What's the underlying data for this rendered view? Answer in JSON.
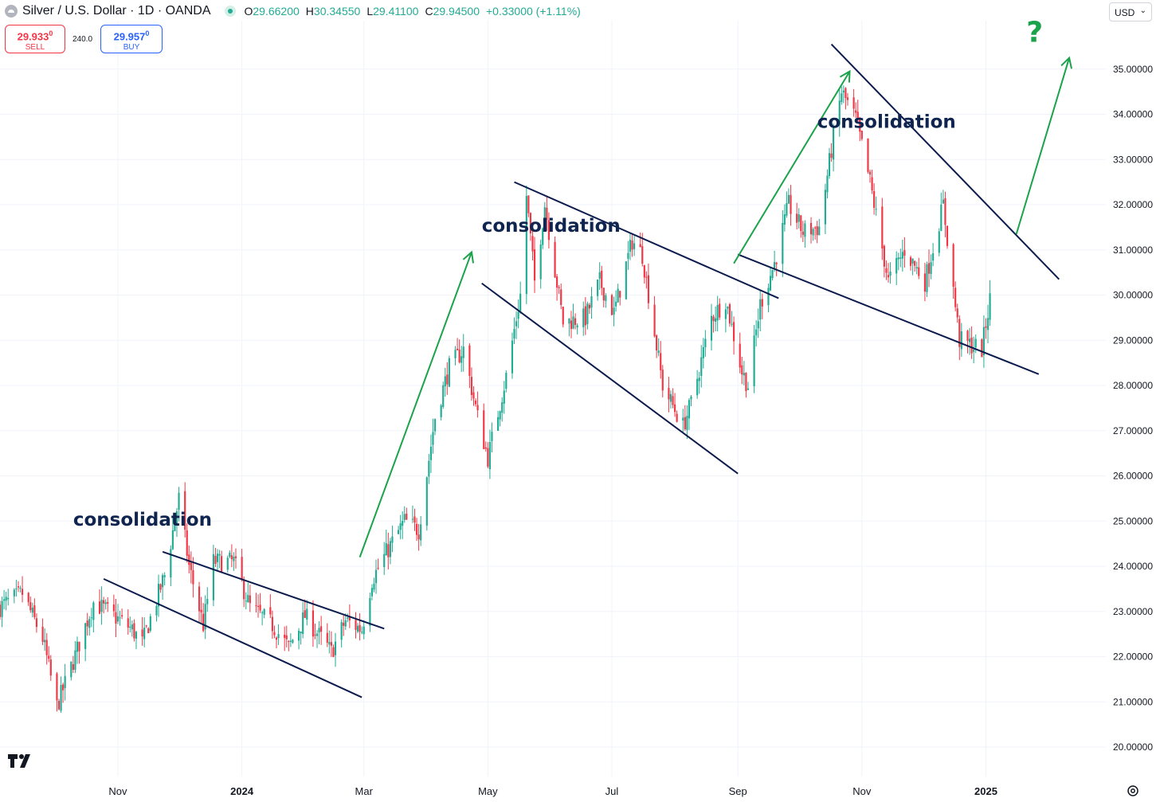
{
  "header": {
    "title": "Silver / U.S. Dollar · 1D · OANDA",
    "ohlc": [
      {
        "k": "O",
        "v": "29.66200"
      },
      {
        "k": "H",
        "v": "30.34550"
      },
      {
        "k": "L",
        "v": "29.41100"
      },
      {
        "k": "C",
        "v": "29.94500"
      },
      {
        "k": "",
        "v": "+0.33000 (+1.11%)"
      }
    ]
  },
  "trade": {
    "sell_price": "29.933",
    "sell_price_small": "0",
    "sell_label": "SELL",
    "spread": "240.0",
    "buy_price": "29.957",
    "buy_price_small": "0",
    "buy_label": "BUY"
  },
  "currency": "USD",
  "colors": {
    "up": "#22ab94",
    "down": "#f23645",
    "trendline": "#0c1b4d",
    "arrow": "#1aa34a",
    "annotation": "#0f2550",
    "grid": "#f0f3fa",
    "axis_text": "#131722"
  },
  "chart_data": {
    "type": "candlestick",
    "symbol": "XAGUSD",
    "interval": "1D",
    "ylim": [
      20.0,
      35.9
    ],
    "y_ticks": [
      "20.00000",
      "21.00000",
      "22.00000",
      "23.00000",
      "24.00000",
      "25.00000",
      "26.00000",
      "27.00000",
      "28.00000",
      "29.00000",
      "30.00000",
      "31.00000",
      "32.00000",
      "33.00000",
      "34.00000",
      "35.00000"
    ],
    "x_ticks": [
      {
        "label": "Nov",
        "date": "2023-11-01"
      },
      {
        "label": "2024",
        "date": "2024-01-01"
      },
      {
        "label": "Mar",
        "date": "2024-03-01"
      },
      {
        "label": "May",
        "date": "2024-05-01"
      },
      {
        "label": "Jul",
        "date": "2024-07-01"
      },
      {
        "label": "Sep",
        "date": "2024-09-01"
      },
      {
        "label": "Nov",
        "date": "2024-11-01"
      },
      {
        "label": "2025",
        "date": "2025-01-01"
      }
    ],
    "xlim": [
      "2023-09-04",
      "2025-03-01"
    ],
    "price_path": [
      [
        "2023-09-04",
        23.1
      ],
      [
        "2023-09-15",
        23.4
      ],
      [
        "2023-09-25",
        22.4
      ],
      [
        "2023-10-02",
        20.9
      ],
      [
        "2023-10-10",
        21.9
      ],
      [
        "2023-10-20",
        23.2
      ],
      [
        "2023-10-27",
        23.0
      ],
      [
        "2023-11-08",
        22.6
      ],
      [
        "2023-11-13",
        22.3
      ],
      [
        "2023-11-24",
        23.8
      ],
      [
        "2023-12-01",
        25.5
      ],
      [
        "2023-12-06",
        24.0
      ],
      [
        "2023-12-13",
        22.7
      ],
      [
        "2023-12-18",
        24.1
      ],
      [
        "2023-12-28",
        24.1
      ],
      [
        "2024-01-05",
        23.1
      ],
      [
        "2024-01-16",
        22.7
      ],
      [
        "2024-01-24",
        22.2
      ],
      [
        "2024-02-01",
        22.9
      ],
      [
        "2024-02-14",
        22.1
      ],
      [
        "2024-02-21",
        22.8
      ],
      [
        "2024-02-29",
        22.6
      ],
      [
        "2024-03-05",
        23.7
      ],
      [
        "2024-03-12",
        24.3
      ],
      [
        "2024-03-21",
        25.0
      ],
      [
        "2024-03-28",
        24.8
      ],
      [
        "2024-04-05",
        27.3
      ],
      [
        "2024-04-12",
        28.4
      ],
      [
        "2024-04-19",
        28.8
      ],
      [
        "2024-04-26",
        27.3
      ],
      [
        "2024-05-01",
        26.4
      ],
      [
        "2024-05-10",
        28.2
      ],
      [
        "2024-05-17",
        30.0
      ],
      [
        "2024-05-20",
        32.2
      ],
      [
        "2024-05-24",
        30.3
      ],
      [
        "2024-05-29",
        32.0
      ],
      [
        "2024-06-07",
        29.4
      ],
      [
        "2024-06-18",
        29.5
      ],
      [
        "2024-06-25",
        30.3
      ],
      [
        "2024-07-02",
        29.6
      ],
      [
        "2024-07-11",
        31.2
      ],
      [
        "2024-07-16",
        30.9
      ],
      [
        "2024-07-26",
        28.0
      ],
      [
        "2024-08-05",
        27.1
      ],
      [
        "2024-08-09",
        27.6
      ],
      [
        "2024-08-19",
        29.5
      ],
      [
        "2024-08-26",
        29.9
      ],
      [
        "2024-09-03",
        28.3
      ],
      [
        "2024-09-06",
        28.0
      ],
      [
        "2024-09-12",
        29.8
      ],
      [
        "2024-09-19",
        30.7
      ],
      [
        "2024-09-26",
        32.0
      ],
      [
        "2024-10-03",
        31.4
      ],
      [
        "2024-10-11",
        31.5
      ],
      [
        "2024-10-18",
        33.5
      ],
      [
        "2024-10-22",
        34.5
      ],
      [
        "2024-10-29",
        33.9
      ],
      [
        "2024-11-05",
        32.5
      ],
      [
        "2024-11-14",
        30.3
      ],
      [
        "2024-11-22",
        31.0
      ],
      [
        "2024-12-02",
        30.3
      ],
      [
        "2024-12-11",
        32.0
      ],
      [
        "2024-12-19",
        29.0
      ],
      [
        "2024-12-30",
        28.8
      ],
      [
        "2025-01-03",
        29.9
      ]
    ]
  },
  "annotations": [
    {
      "text": "consolidation",
      "date": "2023-10-10",
      "price": 24.9
    },
    {
      "text": "consolidation",
      "date": "2024-04-28",
      "price": 31.4
    },
    {
      "text": "consolidation",
      "date": "2024-10-10",
      "price": 33.7
    },
    {
      "text": "?",
      "date": "2025-01-25",
      "price": 35.6
    }
  ],
  "trendlines": [
    [
      "2023-10-25",
      23.72,
      "2024-02-29",
      21.1
    ],
    [
      "2023-11-23",
      24.32,
      "2024-03-11",
      22.62
    ],
    [
      "2024-04-28",
      30.26,
      "2024-09-01",
      26.05
    ],
    [
      "2024-05-14",
      32.5,
      "2024-09-21",
      29.93
    ],
    [
      "2024-09-01",
      30.9,
      "2025-01-27",
      28.25
    ],
    [
      "2024-10-17",
      35.55,
      "2025-02-06",
      30.35
    ]
  ],
  "arrows": [
    [
      "2024-02-28",
      24.2,
      "2024-04-23",
      30.95
    ],
    [
      "2024-08-30",
      30.7,
      "2024-10-26",
      34.95
    ],
    [
      "2025-01-16",
      31.35,
      "2025-02-11",
      35.25
    ]
  ]
}
